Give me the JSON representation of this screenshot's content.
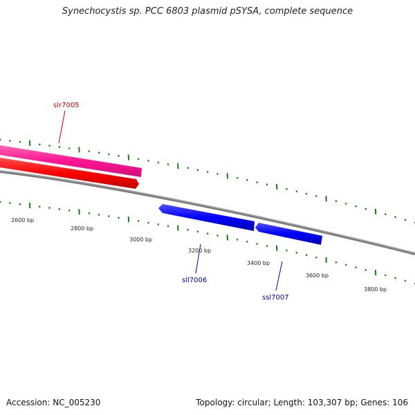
{
  "title": "Synechocystis sp. PCC 6803 plasmid pSYSA, complete sequence",
  "footer": {
    "accession": "Accession: NC_005230",
    "summary": "Topology: circular; Length: 103,307 bp; Genes: 106"
  },
  "bp_labels": [
    "2600 bp",
    "2800 bp",
    "3000 bp",
    "3200 bp",
    "3400 bp",
    "3600 bp",
    "3800 bp"
  ],
  "genes": [
    {
      "name": "slr7005",
      "strand": "forward",
      "color": "#cc0000"
    },
    {
      "name": "sll7006",
      "strand": "reverse",
      "color": "#0000aa"
    },
    {
      "name": "ssl7007",
      "strand": "reverse",
      "color": "#0000aa"
    }
  ],
  "colors": {
    "backbone": "#808080",
    "tick": "#1a7a1a",
    "forward_gene": "#ff0000",
    "forward_cds": "#ff3399",
    "reverse_gene": "#0000ff"
  }
}
